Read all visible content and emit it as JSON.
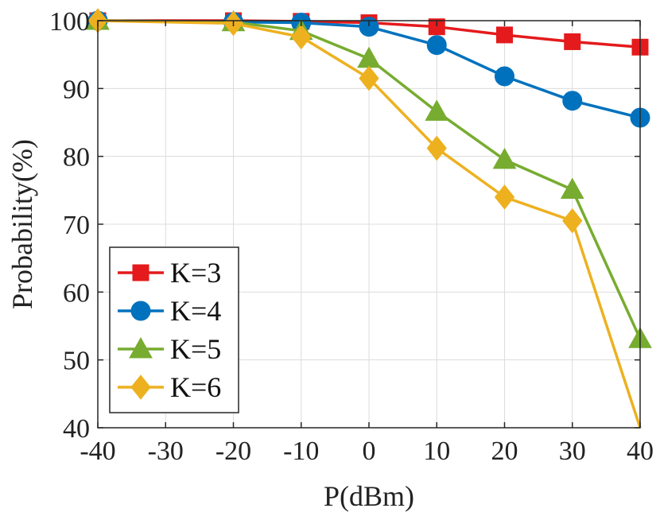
{
  "chart_data": {
    "type": "line",
    "xlabel": "P(dBm)",
    "ylabel": "Probability(%)",
    "xlim": [
      -40,
      40
    ],
    "ylim": [
      40,
      100
    ],
    "xticks": [
      "-40",
      "-30",
      "-20",
      "-10",
      "0",
      "10",
      "20",
      "30",
      "40"
    ],
    "yticks": [
      "40",
      "50",
      "60",
      "70",
      "80",
      "90",
      "100"
    ],
    "grid": true,
    "legend_position": "bottom-left",
    "series": [
      {
        "name": "K=3",
        "color": "#e41a1c",
        "marker": "square",
        "x": [
          -40,
          -20,
          -10,
          0,
          10,
          20,
          30,
          40
        ],
        "y": [
          100,
          100,
          99.9,
          99.7,
          99.1,
          97.9,
          96.9,
          96.1
        ]
      },
      {
        "name": "K=4",
        "color": "#0072bd",
        "marker": "circle",
        "x": [
          -40,
          -20,
          -10,
          0,
          10,
          20,
          30,
          40
        ],
        "y": [
          100,
          99.8,
          99.7,
          99.1,
          96.4,
          91.8,
          88.2,
          85.7
        ]
      },
      {
        "name": "K=5",
        "color": "#77ac30",
        "marker": "triangle",
        "x": [
          -40,
          -20,
          -10,
          0,
          10,
          20,
          30,
          40
        ],
        "y": [
          100,
          99.8,
          98.5,
          94.4,
          86.6,
          79.5,
          75.1,
          53.1
        ]
      },
      {
        "name": "K=6",
        "color": "#edb120",
        "marker": "diamond",
        "x": [
          -40,
          -20,
          -10,
          0,
          10,
          20,
          30,
          40
        ],
        "y": [
          100,
          99.6,
          97.6,
          91.5,
          81.2,
          74.0,
          70.5,
          40.0
        ]
      }
    ]
  }
}
